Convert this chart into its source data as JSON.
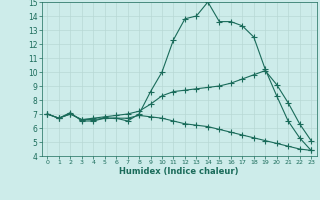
{
  "xlabel": "Humidex (Indice chaleur)",
  "x": [
    0,
    1,
    2,
    3,
    4,
    5,
    6,
    7,
    8,
    9,
    10,
    11,
    12,
    13,
    14,
    15,
    16,
    17,
    18,
    19,
    20,
    21,
    22,
    23
  ],
  "line1": [
    7.0,
    6.7,
    7.1,
    6.5,
    6.5,
    6.7,
    6.7,
    6.5,
    7.0,
    8.6,
    10.0,
    12.3,
    13.8,
    14.0,
    15.0,
    13.6,
    13.6,
    13.3,
    12.5,
    10.2,
    8.3,
    6.5,
    5.3,
    4.4
  ],
  "line2": [
    7.0,
    6.7,
    7.0,
    6.6,
    6.7,
    6.8,
    6.9,
    7.0,
    7.2,
    7.7,
    8.3,
    8.6,
    8.7,
    8.8,
    8.9,
    9.0,
    9.2,
    9.5,
    9.8,
    10.1,
    9.1,
    7.8,
    6.3,
    5.1
  ],
  "line3": [
    7.0,
    6.7,
    7.0,
    6.6,
    6.6,
    6.7,
    6.7,
    6.7,
    6.9,
    6.8,
    6.7,
    6.5,
    6.3,
    6.2,
    6.1,
    5.9,
    5.7,
    5.5,
    5.3,
    5.1,
    4.9,
    4.7,
    4.5,
    4.4
  ],
  "color": "#1a6b5a",
  "bg_color": "#cdecea",
  "grid_color": "#b8d8d5",
  "ylim": [
    4,
    15
  ],
  "xlim": [
    -0.5,
    23.5
  ],
  "yticks": [
    4,
    5,
    6,
    7,
    8,
    9,
    10,
    11,
    12,
    13,
    14,
    15
  ],
  "xticks": [
    0,
    1,
    2,
    3,
    4,
    5,
    6,
    7,
    8,
    9,
    10,
    11,
    12,
    13,
    14,
    15,
    16,
    17,
    18,
    19,
    20,
    21,
    22,
    23
  ],
  "markersize": 2.0,
  "linewidth": 0.8
}
